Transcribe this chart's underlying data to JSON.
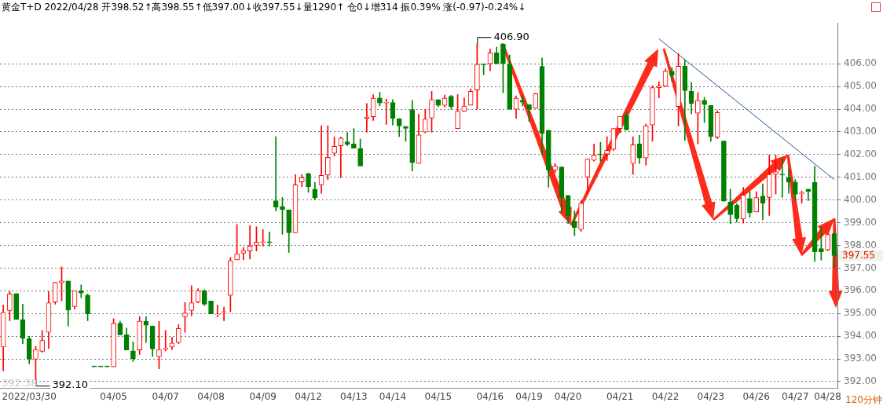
{
  "chart_data": {
    "type": "candlestick",
    "title": "黄金T+D 2022/04/28 开398.52↑高398.55↑低397.00↓收397.55↓量1290↑ 仓0↓增314 振0.39% 涨(-0.97)-0.24%↓",
    "categories": [
      null,
      null,
      null,
      null,
      "2022/03/30",
      null,
      null,
      null,
      null,
      null,
      null,
      null,
      null,
      null,
      null,
      null,
      null,
      "04/05",
      null,
      null,
      null,
      null,
      null,
      null,
      null,
      "04/07",
      null,
      null,
      null,
      null,
      null,
      null,
      "04/08",
      null,
      null,
      null,
      null,
      null,
      null,
      null,
      "04/09",
      null,
      null,
      null,
      null,
      null,
      null,
      "04/12",
      null,
      null,
      null,
      null,
      null,
      null,
      "04/13",
      null,
      null,
      null,
      null,
      null,
      "04/14",
      null,
      null,
      null,
      null,
      null,
      null,
      "04/15",
      null,
      null,
      null,
      null,
      null,
      null,
      null,
      "04/16",
      null,
      null,
      null,
      null,
      null,
      "04/19",
      null,
      null,
      null,
      null,
      null,
      "04/20",
      null,
      null,
      null,
      null,
      null,
      null,
      null,
      "04/21",
      null,
      null,
      null,
      null,
      null,
      null,
      "04/22",
      null,
      null,
      null,
      null,
      null,
      null,
      "04/23",
      null,
      null,
      null,
      null,
      null,
      null,
      "04/26",
      null,
      null,
      null,
      null,
      null,
      "04/27",
      null,
      null,
      null,
      null,
      "04/28",
      null
    ],
    "ohlc": [
      [
        393.52,
        395.38,
        392.48,
        395.05
      ],
      [
        395.13,
        395.97,
        394.68,
        395.86
      ],
      [
        395.88,
        395.88,
        394.74,
        394.74
      ],
      [
        394.74,
        395.41,
        393.67,
        393.91
      ],
      [
        393.89,
        394.0,
        392.79,
        392.99
      ],
      [
        392.99,
        393.55,
        392.1,
        393.41
      ],
      [
        393.33,
        394.25,
        393.3,
        393.81
      ],
      [
        394.17,
        395.97,
        393.46,
        395.47
      ],
      [
        395.5,
        396.37,
        395.41,
        396.37
      ],
      [
        396.35,
        397.05,
        395.56,
        396.43
      ],
      [
        396.43,
        396.43,
        394.45,
        395.15
      ],
      [
        395.3,
        396.01,
        395.19,
        396.01
      ],
      [
        396.01,
        396.26,
        395.69,
        395.9
      ],
      [
        395.81,
        395.86,
        394.68,
        394.98
      ],
      [
        392.65,
        392.65,
        392.65,
        392.65
      ],
      [
        392.65,
        392.65,
        392.65,
        392.65
      ],
      [
        392.65,
        392.65,
        392.65,
        392.65
      ],
      [
        392.65,
        394.77,
        392.65,
        394.57
      ],
      [
        394.57,
        394.66,
        394.06,
        394.06
      ],
      [
        394.06,
        394.36,
        393.39,
        393.39
      ],
      [
        393.35,
        393.76,
        392.88,
        393.01
      ],
      [
        393.39,
        394.87,
        393.19,
        394.66
      ],
      [
        394.65,
        394.87,
        393.72,
        394.48
      ],
      [
        394.45,
        394.45,
        393.1,
        393.44
      ],
      [
        393.1,
        394.65,
        392.56,
        393.41
      ],
      [
        393.44,
        394.25,
        393.35,
        393.46
      ],
      [
        393.52,
        393.95,
        393.41,
        393.7
      ],
      [
        393.72,
        394.51,
        393.67,
        394.34
      ],
      [
        394.85,
        395.49,
        394.17,
        395.02
      ],
      [
        395.13,
        396.22,
        394.9,
        395.47
      ],
      [
        395.5,
        396.09,
        395.47,
        396.01
      ],
      [
        396.01,
        396.05,
        395.35,
        395.41
      ],
      [
        395.55,
        395.55,
        394.98,
        394.98
      ],
      [
        394.94,
        395.38,
        394.85,
        394.98
      ],
      [
        395.05,
        395.28,
        394.68,
        395.08
      ],
      [
        395.8,
        397.47,
        395.07,
        397.33
      ],
      [
        397.36,
        398.92,
        397.36,
        397.63
      ],
      [
        397.66,
        397.91,
        397.36,
        397.77
      ],
      [
        397.75,
        398.88,
        397.4,
        397.97
      ],
      [
        398.0,
        398.82,
        397.75,
        398.14
      ],
      [
        398.13,
        398.7,
        397.97,
        398.14
      ],
      [
        398.14,
        398.59,
        397.97,
        398.13
      ],
      [
        399.97,
        402.79,
        399.52,
        399.69
      ],
      [
        399.72,
        400.11,
        398.49,
        399.58
      ],
      [
        399.56,
        399.56,
        397.69,
        398.56
      ],
      [
        398.56,
        401.12,
        398.56,
        400.67
      ],
      [
        400.8,
        401.12,
        400.59,
        400.99
      ],
      [
        401.16,
        401.19,
        400.34,
        400.59
      ],
      [
        400.48,
        400.78,
        400.01,
        400.09
      ],
      [
        400.67,
        403.27,
        400.29,
        401.08
      ],
      [
        401.1,
        403.27,
        400.9,
        401.88
      ],
      [
        402.06,
        402.77,
        401.94,
        402.36
      ],
      [
        402.39,
        402.77,
        400.99,
        402.73
      ],
      [
        402.56,
        402.98,
        402.4,
        402.45
      ],
      [
        402.47,
        403.15,
        402.28,
        402.28
      ],
      [
        402.27,
        402.68,
        401.5,
        401.5
      ],
      [
        403.6,
        404.25,
        402.98,
        403.66
      ],
      [
        403.67,
        404.64,
        403.5,
        404.48
      ],
      [
        404.49,
        404.74,
        404.14,
        404.27
      ],
      [
        404.27,
        404.45,
        403.33,
        404.3
      ],
      [
        404.29,
        404.42,
        403.3,
        403.6
      ],
      [
        403.58,
        403.58,
        402.79,
        403.26
      ],
      [
        403.24,
        403.24,
        402.59,
        403.16
      ],
      [
        403.98,
        404.39,
        401.27,
        401.64
      ],
      [
        401.61,
        403.78,
        401.61,
        402.87
      ],
      [
        402.99,
        403.99,
        402.96,
        403.57
      ],
      [
        403.61,
        404.79,
        402.98,
        404.42
      ],
      [
        404.42,
        404.42,
        404.1,
        404.17
      ],
      [
        404.17,
        404.62,
        404.1,
        404.48
      ],
      [
        404.57,
        404.61,
        404.0,
        404.12
      ],
      [
        403.15,
        404.65,
        403.15,
        403.91
      ],
      [
        403.91,
        404.5,
        403.91,
        404.14
      ],
      [
        404.18,
        404.9,
        404.18,
        404.79
      ],
      [
        404.84,
        406.9,
        404.0,
        405.98
      ],
      [
        405.98,
        405.98,
        405.52,
        405.96
      ],
      [
        406.0,
        406.65,
        405.69,
        406.48
      ],
      [
        406.48,
        406.73,
        406.0,
        406.0
      ],
      [
        406.86,
        406.86,
        404.72,
        406.0
      ],
      [
        405.98,
        406.39,
        404.0,
        404.0
      ],
      [
        404.0,
        404.59,
        403.6,
        404.48
      ],
      [
        404.39,
        404.59,
        404.14,
        404.31
      ],
      [
        404.2,
        404.2,
        403.46,
        404.0
      ],
      [
        404.05,
        404.7,
        404.05,
        404.68
      ],
      [
        405.88,
        406.26,
        402.0,
        402.92
      ],
      [
        403.07,
        403.07,
        400.56,
        401.32
      ],
      [
        401.32,
        401.6,
        401.2,
        401.49
      ],
      [
        401.46,
        401.46,
        399.47,
        400.11
      ],
      [
        400.2,
        400.2,
        398.96,
        399.3
      ],
      [
        399.07,
        399.52,
        398.43,
        398.79
      ],
      [
        398.7,
        399.97,
        398.62,
        399.86
      ],
      [
        401.01,
        401.8,
        400.29,
        401.8
      ],
      [
        401.75,
        402.47,
        401.71,
        401.98
      ],
      [
        402.0,
        402.54,
        401.7,
        401.99
      ],
      [
        402.02,
        402.79,
        401.74,
        402.19
      ],
      [
        402.23,
        403.15,
        402.17,
        403.15
      ],
      [
        403.15,
        403.69,
        402.96,
        403.69
      ],
      [
        403.72,
        403.86,
        403.09,
        403.09
      ],
      [
        401.61,
        402.79,
        401.13,
        402.43
      ],
      [
        402.47,
        402.85,
        401.61,
        401.85
      ],
      [
        401.85,
        403.35,
        401.53,
        403.27
      ],
      [
        403.3,
        405.04,
        402.59,
        404.95
      ],
      [
        404.95,
        405.21,
        404.5,
        405.04
      ],
      [
        405.02,
        405.77,
        405.01,
        405.68
      ],
      [
        405.68,
        405.83,
        405.24,
        405.49
      ],
      [
        404.12,
        406.45,
        403.26,
        405.89
      ],
      [
        405.89,
        406.17,
        402.62,
        404.82
      ],
      [
        404.79,
        405.18,
        403.8,
        404.25
      ],
      [
        403.82,
        404.73,
        402.47,
        404.39
      ],
      [
        404.39,
        404.53,
        403.41,
        404.2
      ],
      [
        404.16,
        404.16,
        402.59,
        402.79
      ],
      [
        402.77,
        403.94,
        402.7,
        403.85
      ],
      [
        402.6,
        402.6,
        399.95,
        399.95
      ],
      [
        399.92,
        400.48,
        398.96,
        399.35
      ],
      [
        399.77,
        399.84,
        399.02,
        399.18
      ],
      [
        399.16,
        400.56,
        398.98,
        400.22
      ],
      [
        400.06,
        400.37,
        399.24,
        399.44
      ],
      [
        399.47,
        400.37,
        399.47,
        400.11
      ],
      [
        400.18,
        400.71,
        399.13,
        399.86
      ],
      [
        400.11,
        401.98,
        399.32,
        401.13
      ],
      [
        401.13,
        401.98,
        400.26,
        401.25
      ],
      [
        401.13,
        401.83,
        400.11,
        401.1
      ],
      [
        400.99,
        401.38,
        400.29,
        400.8
      ],
      [
        400.79,
        400.9,
        399.97,
        400.25
      ],
      [
        400.28,
        400.4,
        399.86,
        400.3
      ],
      [
        400.48,
        400.48,
        399.97,
        400.37
      ],
      [
        400.78,
        401.49,
        397.29,
        397.72
      ],
      [
        397.86,
        398.79,
        397.35,
        397.72
      ],
      [
        397.8,
        398.48,
        397.76,
        398.48
      ],
      [
        398.52,
        398.55,
        397.0,
        397.55
      ]
    ],
    "colors": [
      "#ff0000",
      "#ff0000",
      "#008000",
      "#008000",
      "#008000",
      "#ff0000",
      "#ff0000",
      "#ff0000",
      "#ff0000",
      "#ff0000",
      "#008000",
      "#ff0000",
      "#008000",
      "#008000",
      "#008000",
      "#008000",
      "#008000",
      "#ff0000",
      "#008000",
      "#008000",
      "#008000",
      "#ff0000",
      "#008000",
      "#008000",
      "#ff0000",
      "#ff0000",
      "#ff0000",
      "#ff0000",
      "#ff0000",
      "#ff0000",
      "#ff0000",
      "#008000",
      "#008000",
      "#ff0000",
      "#ff0000",
      "#ff0000",
      "#ff0000",
      "#ff0000",
      "#ff0000",
      "#ff0000",
      "#ff0000",
      "#008000",
      "#008000",
      "#008000",
      "#008000",
      "#ff0000",
      "#ff0000",
      "#008000",
      "#008000",
      "#ff0000",
      "#ff0000",
      "#ff0000",
      "#ff0000",
      "#008000",
      "#008000",
      "#008000",
      "#ff0000",
      "#ff0000",
      "#008000",
      "#ff0000",
      "#008000",
      "#008000",
      "#008000",
      "#008000",
      "#ff0000",
      "#ff0000",
      "#ff0000",
      "#008000",
      "#ff0000",
      "#008000",
      "#ff0000",
      "#ff0000",
      "#ff0000",
      "#ff0000",
      "#008000",
      "#ff0000",
      "#008000",
      "#008000",
      "#008000",
      "#ff0000",
      "#008000",
      "#008000",
      "#ff0000",
      "#008000",
      "#008000",
      "#ff0000",
      "#008000",
      "#008000",
      "#008000",
      "#ff0000",
      "#ff0000",
      "#ff0000",
      "#008000",
      "#ff0000",
      "#ff0000",
      "#ff0000",
      "#008000",
      "#ff0000",
      "#008000",
      "#ff0000",
      "#ff0000",
      "#ff0000",
      "#ff0000",
      "#008000",
      "#ff0000",
      "#008000",
      "#008000",
      "#ff0000",
      "#008000",
      "#008000",
      "#ff0000",
      "#008000",
      "#008000",
      "#008000",
      "#ff0000",
      "#008000",
      "#ff0000",
      "#008000",
      "#ff0000",
      "#ff0000",
      "#008000",
      "#008000",
      "#008000",
      "#ff0000",
      "#008000",
      "#008000",
      "#008000",
      "#ff0000",
      "#008000"
    ],
    "series": [
      {
        "type": "line",
        "color": "#1f4e9a",
        "values": [
          null,
          null,
          null,
          null,
          null,
          null,
          null,
          null,
          null,
          null,
          null,
          null,
          null,
          null,
          null,
          null,
          null,
          null,
          null,
          null,
          null,
          null,
          null,
          null,
          null,
          null,
          null,
          null,
          null,
          null,
          null,
          null,
          null,
          null,
          null,
          null,
          null,
          null,
          null,
          null,
          null,
          null,
          null,
          null,
          null,
          null,
          null,
          null,
          null,
          null,
          null,
          null,
          null,
          null,
          null,
          null,
          null,
          null,
          null,
          null,
          null,
          null,
          null,
          null,
          null,
          null,
          null,
          null,
          null,
          null,
          null,
          null,
          null,
          null,
          null,
          null,
          null,
          null,
          null,
          null,
          null,
          null,
          null,
          null,
          null,
          null,
          null,
          null,
          null,
          null,
          null,
          null,
          null,
          null,
          null,
          null,
          null,
          null,
          null,
          null,
          null,
          407.1,
          null,
          null,
          null,
          null,
          null,
          null,
          null,
          null,
          null,
          null,
          null,
          null,
          null,
          null,
          null,
          null,
          null,
          null,
          null,
          null,
          null,
          null,
          null,
          null,
          null,
          null,
          400.9
        ]
      }
    ],
    "ylim": [
      391.7,
      407.8
    ],
    "yticks": [
      {
        "value": 392,
        "label": "392.00"
      },
      {
        "value": 393,
        "label": "393.00"
      },
      {
        "value": 394,
        "label": "394.00"
      },
      {
        "value": 395,
        "label": "395.00"
      },
      {
        "value": 396,
        "label": "396.00"
      },
      {
        "value": 397,
        "label": "397.00"
      },
      {
        "value": 398,
        "label": "398.00"
      },
      {
        "value": 399,
        "label": "399.00"
      },
      {
        "value": 400,
        "label": "400.00"
      },
      {
        "value": 401,
        "label": "401.00"
      },
      {
        "value": 402,
        "label": "402.00"
      },
      {
        "value": 403,
        "label": "403.00"
      },
      {
        "value": 404,
        "label": "404.00"
      },
      {
        "value": 405,
        "label": "405.00"
      },
      {
        "value": 406,
        "label": "406.00"
      }
    ],
    "grid": "y",
    "annotations": [
      "406.90",
      "392.10",
      "397.55",
      "392.38",
      "120分钟"
    ]
  }
}
